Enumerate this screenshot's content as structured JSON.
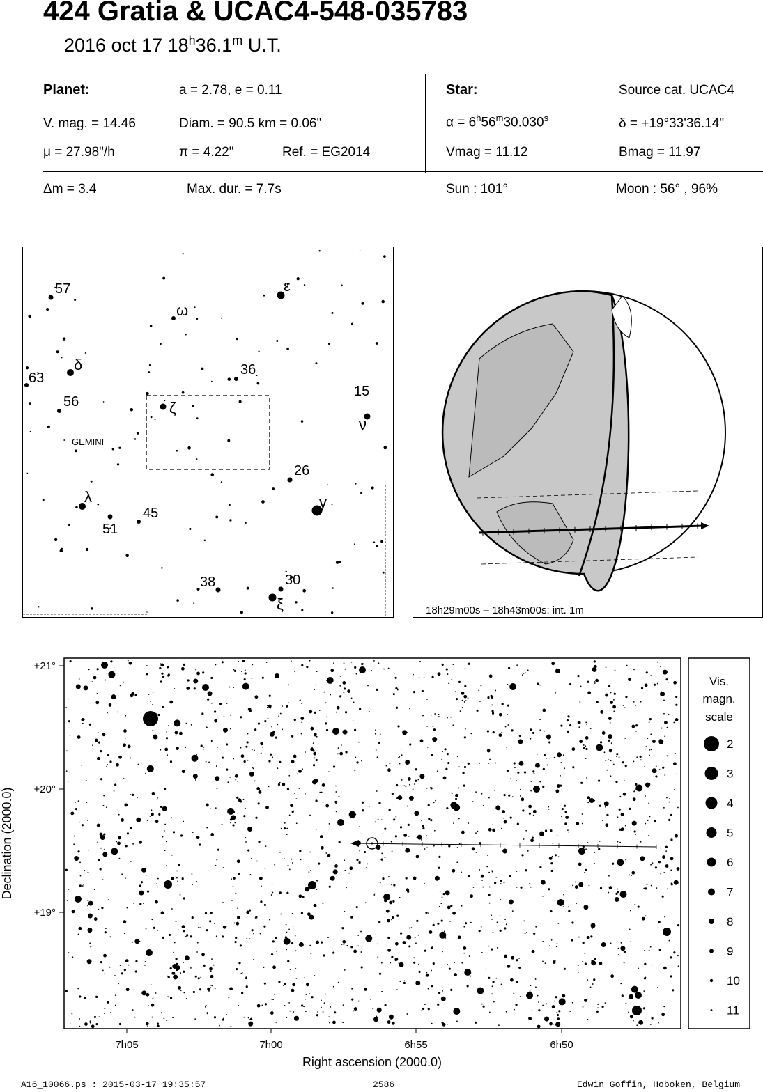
{
  "header": {
    "title": "424 Gratia  &  UCAC4-548-035783",
    "subtitle_prefix": "2016 oct 17  18",
    "subtitle_h": "h",
    "subtitle_min": "36.1",
    "subtitle_m": "m",
    "subtitle_suffix": " U.T."
  },
  "planet": {
    "heading": "Planet:",
    "orbit": "a = 2.78, e = 0.11",
    "vmag": "V. mag. = 14.46",
    "diam": "Diam. = 90.5 km = 0.06\"",
    "mu": "μ =  27.98\"/h",
    "pi": "π =  4.22\"",
    "ref": "Ref. = EG2014"
  },
  "star": {
    "heading": "Star:",
    "source": "Source cat.  UCAC4",
    "alpha_prefix": "α =  6",
    "alpha_h": "h",
    "alpha_min": "56",
    "alpha_m": "m",
    "alpha_sec": "30.030",
    "alpha_s": "s",
    "delta": "δ = +19°33'36.14\"",
    "vmag": "Vmag = 11.12",
    "bmag": "Bmag = 11.97"
  },
  "event": {
    "dm": "Δm = 3.4",
    "maxdur": "Max. dur. = 7.7s",
    "sun": "Sun : 101°",
    "moon": "Moon :  56° , 96%"
  },
  "finder": {
    "constellation": "GEMINI",
    "labels": {
      "57": "57",
      "epsilon": "ε",
      "omega": "ω",
      "63": "63",
      "delta": "δ",
      "36": "36",
      "56": "56",
      "zeta": "ζ",
      "15": "15",
      "nu": "ν",
      "26": "26",
      "lambda": "λ",
      "45": "45",
      "51": "51",
      "gamma": "γ",
      "38": "38",
      "30": "30",
      "xi": "ξ"
    }
  },
  "globe": {
    "caption": "18h29m00s – 18h43m00s; int.  1m"
  },
  "chart": {
    "ylabel": "Declination (2000.0)",
    "xlabel": "Right ascension (2000.0)",
    "yticks": [
      "+21°",
      "+20°",
      "+19°"
    ],
    "xticks": [
      "7h05",
      "7h00",
      "6h55",
      "6h50"
    ]
  },
  "legend": {
    "title_1": "Vis.",
    "title_2": "magn.",
    "title_3": "scale",
    "mags": [
      "2",
      "3",
      "4",
      "5",
      "6",
      "7",
      "8",
      "9",
      "10",
      "11"
    ]
  },
  "footer": {
    "left": "A16_10066.ps : 2015-03-17 19:35:57",
    "center": "2586",
    "right": "Edwin Goffin, Hoboken, Belgium"
  }
}
